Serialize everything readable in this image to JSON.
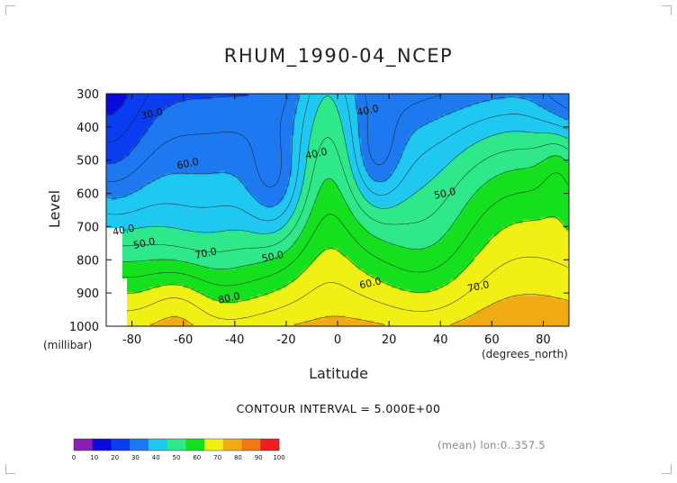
{
  "chart_data": {
    "type": "heatmap",
    "title": "RHUM_1990-04_NCEP",
    "xlabel": "Latitude",
    "ylabel": "Level",
    "x_units": "(degrees_north)",
    "y_units": "(millibar)",
    "xlim": [
      -90,
      90
    ],
    "ylim": [
      1000,
      300
    ],
    "x_ticks": [
      -80,
      -60,
      -40,
      -20,
      0,
      20,
      40,
      60,
      80
    ],
    "y_ticks": [
      300,
      400,
      500,
      600,
      700,
      800,
      900,
      1000
    ],
    "x_tick_labels": [
      "-80",
      "-60",
      "-40",
      "-20",
      "0",
      "20",
      "40",
      "60",
      "80"
    ],
    "y_tick_labels": [
      "300",
      "400",
      "500",
      "600",
      "700",
      "800",
      "900",
      "1000"
    ],
    "contour_interval_text": "CONTOUR INTERVAL = 5.000E+00",
    "meta_text": "(mean) lon:0..357.5",
    "contour_labels": [
      {
        "text": "30.0",
        "lat": -72,
        "level": 370
      },
      {
        "text": "40.0",
        "lat": 12,
        "level": 360
      },
      {
        "text": "40.0",
        "lat": -8,
        "level": 490
      },
      {
        "text": "60.0",
        "lat": -58,
        "level": 520
      },
      {
        "text": "50.0",
        "lat": 42,
        "level": 610
      },
      {
        "text": "40.0",
        "lat": -83,
        "level": 720
      },
      {
        "text": "50.0",
        "lat": -75,
        "level": 760
      },
      {
        "text": "70.0",
        "lat": -51,
        "level": 790
      },
      {
        "text": "50.0",
        "lat": -25,
        "level": 800
      },
      {
        "text": "60.0",
        "lat": 13,
        "level": 880
      },
      {
        "text": "70.0",
        "lat": 55,
        "level": 890
      },
      {
        "text": "80.0",
        "lat": -42,
        "level": 925
      }
    ],
    "colorbar": {
      "ticks": [
        "0",
        "10",
        "20",
        "30",
        "40",
        "50",
        "60",
        "70",
        "80",
        "90",
        "100"
      ],
      "colors": [
        "#8B1FB4",
        "#0A0ADC",
        "#0A3CF0",
        "#1E78F0",
        "#1EC8F0",
        "#2EE88A",
        "#14E01E",
        "#F0F014",
        "#F0AA14",
        "#F07814",
        "#F01E1E"
      ]
    }
  }
}
